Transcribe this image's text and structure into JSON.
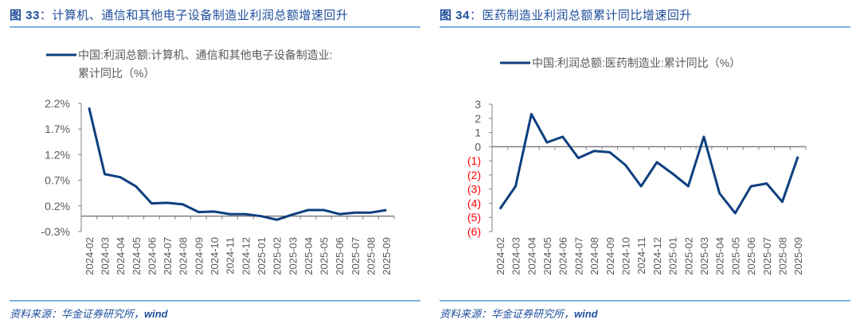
{
  "figures": [
    {
      "id": "fig33",
      "title_prefix": "图 33",
      "title_sep": "：",
      "title_text": "计算机、通信和其他电子设备制造业利润总额增速回升",
      "legend_line1": "中国:利润总额:计算机、通信和其他电子设备制造业:",
      "legend_line2": "累计同比（%）",
      "source_cn": "资料来源：华金证券研究所，",
      "source_en": "wind"
    },
    {
      "id": "fig34",
      "title_prefix": "图 34",
      "title_sep": "：",
      "title_text": "医药制造业利润总额累计同比增速回升",
      "legend_line1": "中国:利润总额:医药制造业:累计同比（%）",
      "source_cn": "资料来源：华金证券研究所，",
      "source_en": "wind"
    }
  ],
  "colors": {
    "line": "#0d3f7e",
    "title": "#1f4e9c",
    "rule": "#7fb2e0",
    "axis": "#808080",
    "tick_label": "#595959",
    "negative_tick_label": "#ff0000"
  },
  "chart_data": [
    {
      "type": "line",
      "title": "图 33：计算机、通信和其他电子设备制造业利润总额增速回升",
      "xlabel": "",
      "ylabel": "",
      "legend": [
        "中国:利润总额:计算机、通信和其他电子设备制造业:累计同比（%）"
      ],
      "legend_position": "top",
      "grid": false,
      "categories": [
        "2024-02",
        "2024-03",
        "2024-04",
        "2024-05",
        "2024-06",
        "2024-07",
        "2024-08",
        "2024-09",
        "2024-10",
        "2024-11",
        "2024-12",
        "2025-01",
        "2025-02",
        "2025-03",
        "2025-04",
        "2025-05",
        "2025-06",
        "2025-07",
        "2025-08",
        "2025-09"
      ],
      "series": [
        {
          "name": "中国:利润总额:计算机、通信和其他电子设备制造业:累计同比（%）",
          "values": [
            2.12,
            0.82,
            0.76,
            0.58,
            0.25,
            0.26,
            0.23,
            0.08,
            0.09,
            0.04,
            0.04,
            0.0,
            -0.07,
            0.03,
            0.12,
            0.12,
            0.04,
            0.07,
            0.07,
            0.12
          ]
        }
      ],
      "yticks": [
        "2.2%",
        "1.7%",
        "1.2%",
        "0.7%",
        "0.2%",
        "-0.3%"
      ],
      "ytick_values": [
        2.2,
        1.7,
        1.2,
        0.7,
        0.2,
        -0.3
      ],
      "ylim": [
        -0.3,
        2.2
      ]
    },
    {
      "type": "line",
      "title": "图 34：医药制造业利润总额累计同比增速回升",
      "xlabel": "",
      "ylabel": "",
      "legend": [
        "中国:利润总额:医药制造业:累计同比（%）"
      ],
      "legend_position": "top",
      "grid": false,
      "categories": [
        "2024-02",
        "2024-03",
        "2024-04",
        "2024-05",
        "2024-06",
        "2024-07",
        "2024-08",
        "2024-09",
        "2024-10",
        "2024-11",
        "2024-12",
        "2025-01",
        "2025-02",
        "2025-03",
        "2025-04",
        "2025-05",
        "2025-06",
        "2025-07",
        "2025-08",
        "2025-09"
      ],
      "series": [
        {
          "name": "中国:利润总额:医药制造业:累计同比（%）",
          "values": [
            -4.4,
            -2.8,
            2.3,
            0.3,
            0.7,
            -0.8,
            -0.3,
            -0.4,
            -1.3,
            -2.8,
            -1.1,
            -1.9,
            -2.8,
            0.7,
            -3.3,
            -4.7,
            -2.8,
            -2.6,
            -3.9,
            -0.7
          ]
        }
      ],
      "yticks": [
        "3",
        "2",
        "1",
        "0",
        "(1)",
        "(2)",
        "(3)",
        "(4)",
        "(5)",
        "(6)"
      ],
      "ytick_values": [
        3,
        2,
        1,
        0,
        -1,
        -2,
        -3,
        -4,
        -5,
        -6
      ],
      "ylim": [
        -6,
        3
      ]
    }
  ]
}
